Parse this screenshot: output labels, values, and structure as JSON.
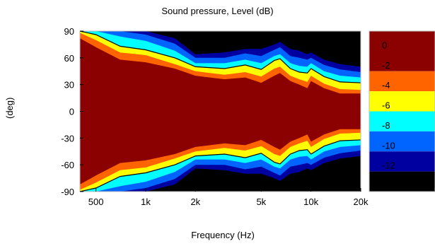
{
  "chart_data": {
    "type": "heatmap",
    "title": "Sound pressure, Level  (dB)",
    "xlabel": "Frequency  (Hz)",
    "ylabel": "(deg)",
    "x_scale": "log",
    "xlim": [
      400,
      20000
    ],
    "ylim": [
      -90,
      90
    ],
    "x_ticks": [
      {
        "value": 500,
        "label": "500"
      },
      {
        "value": 1000,
        "label": "1k"
      },
      {
        "value": 2000,
        "label": "2k"
      },
      {
        "value": 5000,
        "label": "5k"
      },
      {
        "value": 10000,
        "label": "10k"
      },
      {
        "value": 20000,
        "label": "20k"
      }
    ],
    "y_ticks": [
      {
        "value": 90,
        "label": "90"
      },
      {
        "value": 60,
        "label": "60"
      },
      {
        "value": 30,
        "label": "30"
      },
      {
        "value": 0,
        "label": "0"
      },
      {
        "value": -30,
        "label": "-30"
      },
      {
        "value": -60,
        "label": "-60"
      },
      {
        "value": -90,
        "label": "-90"
      }
    ],
    "colorbar": {
      "range": [
        -14,
        2
      ],
      "ticks": [
        {
          "value": 0,
          "label": "0"
        },
        {
          "value": -2,
          "label": "-2"
        },
        {
          "value": -4,
          "label": "-4"
        },
        {
          "value": -6,
          "label": "-6"
        },
        {
          "value": -8,
          "label": "-8"
        },
        {
          "value": -10,
          "label": "-10"
        },
        {
          "value": -12,
          "label": "-12"
        }
      ]
    },
    "levels": [
      {
        "range": [
          -2,
          2
        ],
        "color": "#8b0000"
      },
      {
        "range": [
          -4,
          -2
        ],
        "color": "#ff6400"
      },
      {
        "range": [
          -6,
          -4
        ],
        "color": "#ffff00"
      },
      {
        "range": [
          -8,
          -6
        ],
        "color": "#00ffff"
      },
      {
        "range": [
          -10,
          -8
        ],
        "color": "#0064ff"
      },
      {
        "range": [
          -12,
          -10
        ],
        "color": "#0000a0"
      },
      {
        "range": [
          -14,
          -12
        ],
        "color": "#000000"
      }
    ],
    "contour_line_level": -6,
    "beamwidth_edges_deg": [
      {
        "frequency": 400,
        "edges": [
          82,
          88,
          92,
          95,
          98,
          100
        ]
      },
      {
        "frequency": 500,
        "edges": [
          72,
          80,
          86,
          92,
          97,
          100
        ]
      },
      {
        "frequency": 700,
        "edges": [
          58,
          66,
          73,
          84,
          93,
          98
        ]
      },
      {
        "frequency": 1000,
        "edges": [
          55,
          63,
          69,
          79,
          86,
          93
        ]
      },
      {
        "frequency": 1500,
        "edges": [
          48,
          53,
          60,
          68,
          76,
          82
        ]
      },
      {
        "frequency": 2000,
        "edges": [
          40,
          45,
          50,
          54,
          60,
          64
        ]
      },
      {
        "frequency": 3000,
        "edges": [
          36,
          41,
          48,
          54,
          60,
          66
        ]
      },
      {
        "frequency": 4000,
        "edges": [
          38,
          44,
          52,
          58,
          65,
          70
        ]
      },
      {
        "frequency": 5000,
        "edges": [
          32,
          39,
          47,
          54,
          62,
          70
        ]
      },
      {
        "frequency": 6000,
        "edges": [
          40,
          48,
          57,
          62,
          69,
          75
        ]
      },
      {
        "frequency": 6500,
        "edges": [
          43,
          50,
          59,
          64,
          72,
          78
        ]
      },
      {
        "frequency": 7500,
        "edges": [
          34,
          40,
          48,
          54,
          62,
          70
        ]
      },
      {
        "frequency": 8500,
        "edges": [
          30,
          36,
          44,
          51,
          60,
          68
        ]
      },
      {
        "frequency": 9500,
        "edges": [
          26,
          33,
          43,
          50,
          58,
          64
        ]
      },
      {
        "frequency": 10000,
        "edges": [
          34,
          40,
          48,
          54,
          60,
          66
        ]
      },
      {
        "frequency": 12000,
        "edges": [
          26,
          31,
          39,
          45,
          52,
          58
        ]
      },
      {
        "frequency": 15000,
        "edges": [
          20,
          25,
          33,
          40,
          47,
          53
        ]
      },
      {
        "frequency": 20000,
        "edges": [
          20,
          24,
          32,
          38,
          44,
          50
        ]
      }
    ]
  }
}
